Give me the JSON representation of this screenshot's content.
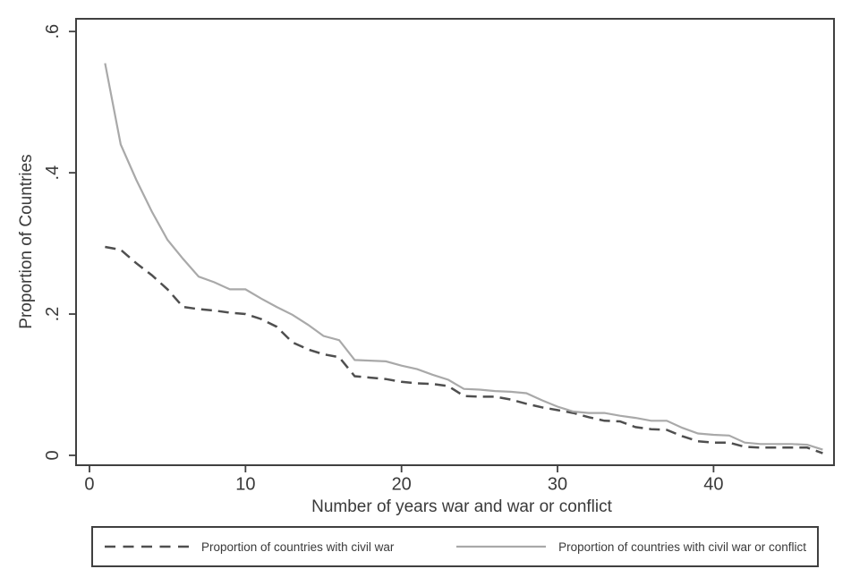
{
  "chart_data": {
    "type": "line",
    "title": "",
    "xlabel": "Number of years war and war or conflict",
    "ylabel": "Proportion of Countries",
    "xlim": [
      -0.86,
      47.72
    ],
    "ylim": [
      -0.014,
      0.618
    ],
    "x_ticks": [
      0,
      10,
      20,
      30,
      40
    ],
    "x_tick_labels": [
      "0",
      "10",
      "20",
      "30",
      "40"
    ],
    "y_ticks": [
      0,
      0.2,
      0.4,
      0.6
    ],
    "y_tick_labels": [
      "0",
      ".2",
      ".4",
      ".6"
    ],
    "grid": false,
    "legend_position": "bottom",
    "x": [
      1,
      2,
      3,
      4,
      5,
      6,
      7,
      8,
      9,
      10,
      11,
      12,
      13,
      14,
      15,
      16,
      17,
      18,
      19,
      20,
      21,
      22,
      23,
      24,
      25,
      26,
      27,
      28,
      29,
      30,
      31,
      32,
      33,
      34,
      35,
      36,
      37,
      38,
      39,
      40,
      41,
      42,
      43,
      44,
      45,
      46,
      47
    ],
    "series": [
      {
        "name": "Proportion of countries with civil war",
        "style": "dashed",
        "color": "#4f4f4f",
        "values": [
          0.295,
          0.291,
          0.272,
          0.255,
          0.235,
          0.21,
          0.207,
          0.205,
          0.202,
          0.2,
          0.193,
          0.182,
          0.16,
          0.15,
          0.143,
          0.139,
          0.112,
          0.11,
          0.108,
          0.104,
          0.102,
          0.101,
          0.098,
          0.084,
          0.083,
          0.083,
          0.079,
          0.073,
          0.068,
          0.064,
          0.06,
          0.054,
          0.049,
          0.048,
          0.04,
          0.037,
          0.036,
          0.027,
          0.02,
          0.018,
          0.018,
          0.012,
          0.011,
          0.011,
          0.011,
          0.011,
          0.003
        ]
      },
      {
        "name": "Proportion of countries with civil war or conflict",
        "style": "solid",
        "color": "#a9a9a9",
        "values": [
          0.555,
          0.44,
          0.39,
          0.345,
          0.305,
          0.278,
          0.253,
          0.245,
          0.235,
          0.235,
          0.222,
          0.21,
          0.199,
          0.185,
          0.169,
          0.163,
          0.135,
          0.134,
          0.133,
          0.127,
          0.122,
          0.114,
          0.107,
          0.094,
          0.093,
          0.091,
          0.09,
          0.088,
          0.078,
          0.069,
          0.062,
          0.06,
          0.06,
          0.056,
          0.053,
          0.049,
          0.049,
          0.039,
          0.031,
          0.029,
          0.028,
          0.018,
          0.016,
          0.016,
          0.016,
          0.015,
          0.008
        ]
      }
    ]
  },
  "colors": {
    "axis": "#404040",
    "text": "#3a3a3a",
    "background": "#ffffff"
  }
}
